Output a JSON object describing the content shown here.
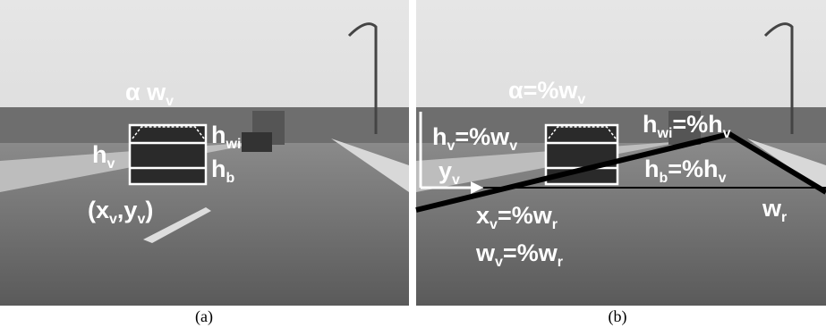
{
  "panels": [
    {
      "caption": "(a)",
      "labels": [
        [
          "α w",
          "v"
        ],
        [
          "h",
          "v"
        ],
        [
          "h",
          "wi"
        ],
        [
          "h",
          "b"
        ],
        [
          "(x",
          "v",
          ",y",
          "v",
          ")"
        ]
      ]
    },
    {
      "caption": "(b)",
      "labels": [
        [
          "α=%w",
          "v"
        ],
        [
          "h",
          "v",
          "=%w",
          "v"
        ],
        [
          "h",
          "wi",
          "=%h",
          "v"
        ],
        [
          "h",
          "b",
          "=%h",
          "v"
        ],
        [
          "y",
          "v"
        ],
        [
          "x",
          "v",
          "=%w",
          "r"
        ],
        [
          "w",
          "v",
          "=%w",
          "r"
        ],
        [
          "w",
          "r"
        ]
      ]
    }
  ]
}
